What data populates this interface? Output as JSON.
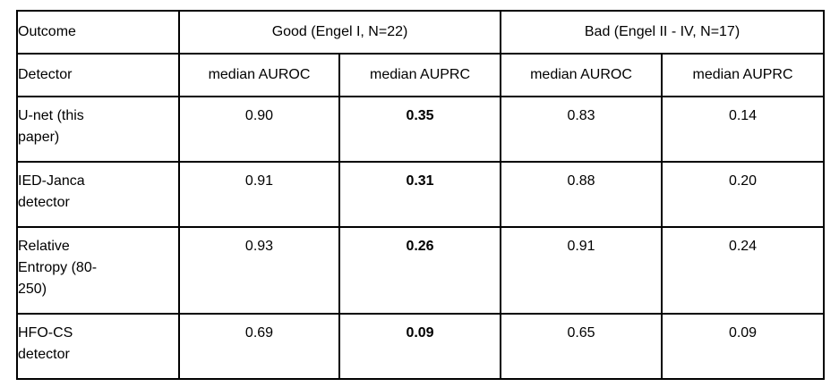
{
  "table": {
    "header_row1": {
      "outcome_label": "Outcome",
      "good_group_label": "Good (Engel I, N=22)",
      "bad_group_label": "Bad (Engel II - IV, N=17)"
    },
    "header_row2": {
      "detector_label": "Detector",
      "cols": [
        "median AUROC",
        "median AUPRC",
        "median AUROC",
        "median AUPRC"
      ]
    },
    "rows": [
      {
        "detector": "U-net (this paper)",
        "good_auroc": "0.90",
        "good_auprc": "0.35",
        "bad_auroc": "0.83",
        "bad_auprc": "0.14"
      },
      {
        "detector": "IED-Janca detector",
        "good_auroc": "0.91",
        "good_auprc": "0.31",
        "bad_auroc": "0.88",
        "bad_auprc": "0.20"
      },
      {
        "detector": "Relative Entropy (80-250)",
        "good_auroc": "0.93",
        "good_auprc": "0.26",
        "bad_auroc": "0.91",
        "bad_auprc": "0.24"
      },
      {
        "detector": "HFO-CS detector",
        "good_auroc": "0.69",
        "good_auprc": "0.09",
        "bad_auroc": "0.65",
        "bad_auprc": "0.09"
      }
    ],
    "colors": {
      "border": "#000000",
      "text": "#000000",
      "background": "#ffffff"
    }
  }
}
